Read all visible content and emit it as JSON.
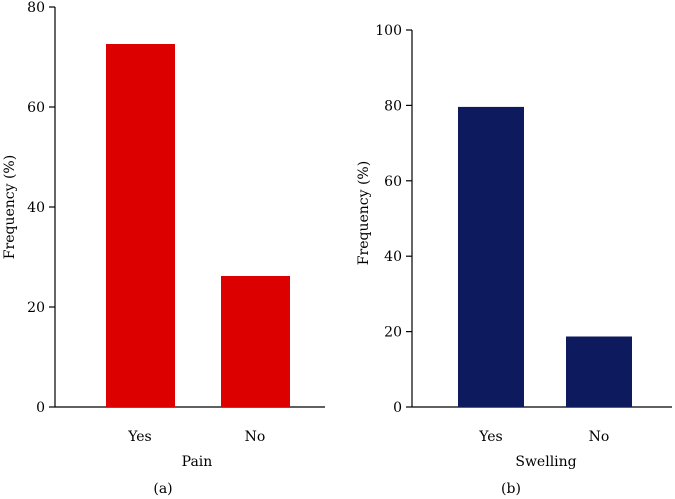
{
  "chart_data": [
    {
      "type": "bar",
      "panel_label": "(a)",
      "categories": [
        "Yes",
        "No"
      ],
      "values": [
        72.6,
        26.2
      ],
      "xlabel": "Pain",
      "ylabel": "Frequency (%)",
      "ylim": [
        0,
        80
      ],
      "yticks": [
        "0",
        "20",
        "40",
        "60",
        "80"
      ],
      "color": "#dd0000"
    },
    {
      "type": "bar",
      "panel_label": "(b)",
      "categories": [
        "Yes",
        "No"
      ],
      "values": [
        79.6,
        18.7
      ],
      "xlabel": "Swelling",
      "ylabel": "Frequency (%)",
      "ylim": [
        0,
        100
      ],
      "yticks": [
        "0",
        "20",
        "40",
        "60",
        "80",
        "100"
      ],
      "color": "#0d1a5e"
    }
  ]
}
